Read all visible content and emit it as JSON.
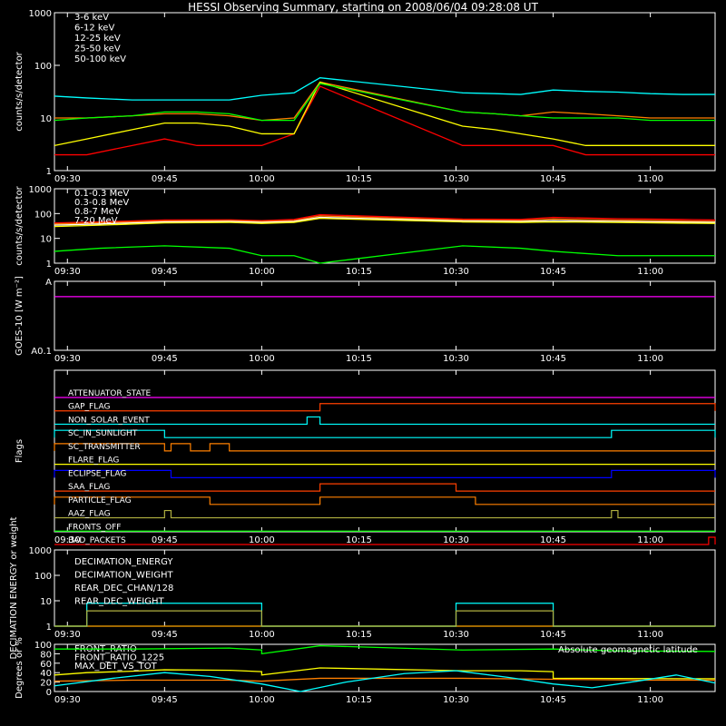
{
  "title": "HESSI Observing Summary, starting on 2008/06/04 09:28:08 UT",
  "colors": {
    "background": "#000000",
    "axes": "#ffffff",
    "red": "#ff0000",
    "orange": "#ff8000",
    "yellow": "#ffff00",
    "green": "#00ff00",
    "cyan": "#00ffff",
    "magenta": "#ff00ff",
    "blue": "#0000ff",
    "olive": "#b0b040"
  },
  "chart_data": [
    {
      "type": "line",
      "panel": "lo-energy-rates",
      "ylabel": "counts/s/detector",
      "yscale": "log",
      "ylim": [
        1,
        1000
      ],
      "yticks": [
        "1",
        "10",
        "100",
        "1000"
      ],
      "xlim": [
        "09:28",
        "11:10"
      ],
      "xticks": [
        "09:30",
        "09:45",
        "10:00",
        "10:15",
        "10:30",
        "10:45",
        "11:00"
      ],
      "legend_position": "top-left",
      "series": [
        {
          "name": "3-6 keV",
          "color": "#ff0000",
          "x": [
            "09:28",
            "09:33",
            "09:40",
            "09:45",
            "09:50",
            "09:55",
            "10:00",
            "10:05",
            "10:09",
            "10:31",
            "10:36",
            "10:40",
            "10:45",
            "10:50",
            "10:55",
            "11:00",
            "11:05",
            "11:10"
          ],
          "y": [
            2,
            2,
            3,
            4,
            3,
            3,
            3,
            5,
            40,
            3,
            3,
            3,
            3,
            2,
            2,
            2,
            2,
            2
          ]
        },
        {
          "name": "6-12 keV",
          "color": "#ff8000",
          "x": [
            "09:28",
            "09:33",
            "09:40",
            "09:45",
            "09:50",
            "09:55",
            "10:00",
            "10:05",
            "10:09",
            "10:31",
            "10:36",
            "10:40",
            "10:45",
            "10:50",
            "10:55",
            "11:00",
            "11:05",
            "11:10"
          ],
          "y": [
            10,
            10,
            11,
            12,
            12,
            11,
            9,
            10,
            48,
            13,
            12,
            11,
            13,
            12,
            11,
            10,
            10,
            10
          ]
        },
        {
          "name": "12-25 keV",
          "color": "#ffff00",
          "x": [
            "09:28",
            "09:33",
            "09:40",
            "09:45",
            "09:50",
            "09:55",
            "10:00",
            "10:05",
            "10:09",
            "10:31",
            "10:36",
            "10:40",
            "10:45",
            "10:50",
            "10:55",
            "11:00",
            "11:05",
            "11:10"
          ],
          "y": [
            3,
            4,
            6,
            8,
            8,
            7,
            5,
            5,
            48,
            7,
            6,
            5,
            4,
            3,
            3,
            3,
            3,
            3
          ]
        },
        {
          "name": "25-50 keV",
          "color": "#00ff00",
          "x": [
            "09:28",
            "09:33",
            "09:40",
            "09:45",
            "09:50",
            "09:55",
            "10:00",
            "10:05",
            "10:09",
            "10:31",
            "10:36",
            "10:40",
            "10:45",
            "10:50",
            "10:55",
            "11:00",
            "11:05",
            "11:10"
          ],
          "y": [
            9,
            10,
            11,
            13,
            13,
            12,
            9,
            9,
            45,
            13,
            12,
            11,
            10,
            10,
            10,
            9,
            9,
            9
          ]
        },
        {
          "name": "50-100 keV",
          "color": "#00ffff",
          "x": [
            "09:28",
            "09:33",
            "09:40",
            "09:45",
            "09:50",
            "09:55",
            "10:00",
            "10:05",
            "10:09",
            "10:31",
            "10:36",
            "10:40",
            "10:45",
            "10:50",
            "10:55",
            "11:00",
            "11:05",
            "11:10"
          ],
          "y": [
            26,
            24,
            22,
            22,
            22,
            22,
            27,
            30,
            58,
            30,
            29,
            28,
            34,
            32,
            31,
            29,
            28,
            28
          ]
        }
      ]
    },
    {
      "type": "line",
      "panel": "hi-energy-rates",
      "ylabel": "counts/s/detector",
      "yscale": "log",
      "ylim": [
        1,
        1000
      ],
      "yticks": [
        "1",
        "10",
        "100",
        "1000"
      ],
      "xlim": [
        "09:28",
        "11:10"
      ],
      "xticks": [
        "09:30",
        "09:45",
        "10:00",
        "10:15",
        "10:30",
        "10:45",
        "11:00"
      ],
      "legend_position": "top-left",
      "series": [
        {
          "name": "0.1-0.3 MeV",
          "color": "#ff0000",
          "x": [
            "09:28",
            "09:35",
            "09:45",
            "09:55",
            "10:00",
            "10:05",
            "10:09",
            "10:31",
            "10:40",
            "10:45",
            "10:55",
            "11:05",
            "11:10"
          ],
          "y": [
            42,
            46,
            55,
            56,
            52,
            58,
            90,
            60,
            58,
            70,
            62,
            58,
            55
          ]
        },
        {
          "name": "0.3-0.8 MeV",
          "color": "#ff8000",
          "x": [
            "09:28",
            "09:35",
            "09:45",
            "09:55",
            "10:00",
            "10:05",
            "10:09",
            "10:31",
            "10:40",
            "10:45",
            "10:55",
            "11:05",
            "11:10"
          ],
          "y": [
            38,
            42,
            50,
            52,
            48,
            52,
            80,
            54,
            52,
            60,
            54,
            50,
            48
          ]
        },
        {
          "name": "0.8-7 MeV",
          "color": "#ffffff",
          "x": [
            "09:28",
            "09:35",
            "09:45",
            "09:55",
            "10:00",
            "10:05",
            "10:09",
            "10:31",
            "10:40",
            "10:45",
            "10:55",
            "11:05",
            "11:10"
          ],
          "y": [
            34,
            38,
            46,
            48,
            44,
            48,
            70,
            50,
            48,
            52,
            48,
            45,
            44
          ]
        },
        {
          "name": "7-20 MeV",
          "color": "#ffff00",
          "x": [
            "09:28",
            "09:35",
            "09:45",
            "09:55",
            "10:00",
            "10:05",
            "10:09",
            "10:31",
            "10:40",
            "10:45",
            "10:55",
            "11:05",
            "11:10"
          ],
          "y": [
            30,
            34,
            42,
            44,
            40,
            44,
            64,
            46,
            44,
            46,
            44,
            41,
            40
          ]
        },
        {
          "name": "",
          "color": "#00ff00",
          "x": [
            "09:28",
            "09:35",
            "09:45",
            "09:55",
            "10:00",
            "10:05",
            "10:09",
            "10:31",
            "10:40",
            "10:45",
            "10:55",
            "11:05",
            "11:10"
          ],
          "y": [
            3,
            4,
            5,
            4,
            2,
            2,
            1,
            5,
            4,
            3,
            2,
            2,
            2
          ]
        }
      ]
    },
    {
      "type": "line",
      "panel": "goes",
      "ylabel": "GOES-10 [W m⁻²]",
      "yscale": "log",
      "ylim": [
        0.1,
        1
      ],
      "yticks": [
        "A0.1",
        "A"
      ],
      "xlim": [
        "09:28",
        "11:10"
      ],
      "xticks": [
        "09:30",
        "09:45",
        "10:00",
        "10:15",
        "10:30",
        "10:45",
        "11:00"
      ],
      "series": [
        {
          "name": "",
          "color": "#ff00ff",
          "x": [
            "09:28",
            "11:10"
          ],
          "y": [
            0.6,
            0.6
          ]
        }
      ]
    },
    {
      "type": "line",
      "panel": "flags",
      "ylabel": "Flags",
      "xlim": [
        "09:28",
        "11:10"
      ],
      "xticks": [
        "09:30",
        "09:45",
        "10:00",
        "10:15",
        "10:30",
        "10:45",
        "11:00"
      ],
      "series": [
        {
          "name": "ATTENUATOR_STATE",
          "color": "#ff00ff",
          "on": []
        },
        {
          "name": "GAP_FLAG",
          "color": "#ff4000",
          "on": [
            [
              "10:09",
              "11:10"
            ]
          ]
        },
        {
          "name": "NON_SOLAR_EVENT",
          "color": "#00ffff",
          "on": [
            [
              "10:07",
              "10:09"
            ]
          ]
        },
        {
          "name": "SC_IN_SUNLIGHT",
          "color": "#00ffff",
          "on": [
            [
              "09:28",
              "09:45"
            ],
            [
              "10:54",
              "11:10"
            ]
          ]
        },
        {
          "name": "SC_TRANSMITTER",
          "color": "#ff8000",
          "on": [
            [
              "09:28",
              "09:45"
            ],
            [
              "09:46",
              "09:49"
            ],
            [
              "09:52",
              "09:55"
            ]
          ]
        },
        {
          "name": "FLARE_FLAG",
          "color": "#ffff00",
          "on": []
        },
        {
          "name": "ECLIPSE_FLAG",
          "color": "#0000ff",
          "on": [
            [
              "09:28",
              "09:46"
            ],
            [
              "10:54",
              "11:10"
            ]
          ]
        },
        {
          "name": "SAA_FLAG",
          "color": "#ff4000",
          "on": [
            [
              "10:09",
              "10:30"
            ]
          ]
        },
        {
          "name": "PARTICLE_FLAG",
          "color": "#ff8000",
          "on": [
            [
              "09:28",
              "09:52"
            ],
            [
              "10:09",
              "10:33"
            ]
          ]
        },
        {
          "name": "AAZ_FLAG",
          "color": "#b0b040",
          "on": [
            [
              "09:45",
              "09:46"
            ],
            [
              "10:54",
              "10:55"
            ]
          ]
        },
        {
          "name": "FRONTS_OFF",
          "color": "#00ff00",
          "on": []
        },
        {
          "name": "BAD_PACKETS",
          "color": "#ff0000",
          "on": [
            [
              "11:09",
              "11:10"
            ]
          ]
        }
      ]
    },
    {
      "type": "line",
      "panel": "decimation",
      "ylabel": "DECIMATION ENERGY or weight",
      "yscale": "log",
      "ylim": [
        1,
        1000
      ],
      "yticks": [
        "1",
        "10",
        "100",
        "1000"
      ],
      "xlim": [
        "09:28",
        "11:10"
      ],
      "xticks": [
        "09:30",
        "09:45",
        "10:00",
        "10:15",
        "10:30",
        "10:45",
        "11:00"
      ],
      "legend_position": "top-left",
      "series": [
        {
          "name": "DECIMATION_ENERGY",
          "color": "#00ff00",
          "segments": [
            [
              [
                "09:28",
                1
              ],
              [
                "11:10",
                1
              ]
            ]
          ]
        },
        {
          "name": "DECIMATION_WEIGHT",
          "color": "#ff8000",
          "segments": [
            [
              [
                "09:28",
                1
              ],
              [
                "11:10",
                1
              ]
            ]
          ]
        },
        {
          "name": "REAR_DEC_CHAN/128",
          "color": "#00ffff",
          "segments": [
            [
              [
                "09:28",
                1
              ],
              [
                "09:33",
                1
              ],
              [
                "09:33",
                8
              ],
              [
                "10:00",
                8
              ],
              [
                "10:00",
                1
              ],
              [
                "10:30",
                1
              ],
              [
                "10:30",
                8
              ],
              [
                "10:45",
                8
              ],
              [
                "10:45",
                1
              ],
              [
                "11:10",
                1
              ]
            ]
          ]
        },
        {
          "name": "REAR_DEC_WEIGHT",
          "color": "#b0b040",
          "segments": [
            [
              [
                "09:28",
                1
              ],
              [
                "09:33",
                1
              ],
              [
                "09:33",
                4
              ],
              [
                "10:00",
                4
              ],
              [
                "10:00",
                1
              ],
              [
                "10:30",
                1
              ],
              [
                "10:30",
                4
              ],
              [
                "10:45",
                4
              ],
              [
                "10:45",
                1
              ],
              [
                "11:10",
                1
              ]
            ]
          ]
        }
      ]
    },
    {
      "type": "line",
      "panel": "ratios",
      "ylabel": "Degrees or %",
      "ylim": [
        0,
        100
      ],
      "yticks": [
        "0",
        "20",
        "40",
        "60",
        "80",
        "100"
      ],
      "xlim": [
        "09:28",
        "11:10"
      ],
      "xticks": [
        "09:30",
        "09:45",
        "10:00",
        "10:15",
        "10:30",
        "10:45",
        "11:00"
      ],
      "legend_position": "top-left",
      "series": [
        {
          "name": "FRONT_RATIO",
          "color": "#ffff00",
          "x": [
            "09:28",
            "09:33",
            "09:40",
            "09:45",
            "09:55",
            "10:00",
            "10:00",
            "10:09",
            "10:31",
            "10:40",
            "10:45",
            "10:45",
            "11:10"
          ],
          "y": [
            35,
            40,
            43,
            46,
            45,
            42,
            35,
            50,
            44,
            44,
            42,
            28,
            27
          ]
        },
        {
          "name": "FRONT_RATIO_1225",
          "color": "#00ff00",
          "x": [
            "09:28",
            "09:40",
            "09:55",
            "10:00",
            "10:00",
            "10:09",
            "10:31",
            "10:45",
            "10:55",
            "11:10"
          ],
          "y": [
            90,
            90,
            92,
            88,
            80,
            97,
            88,
            90,
            86,
            85
          ]
        },
        {
          "name": "MAX_DET_VS_TOT",
          "color": "#ff8000",
          "x": [
            "09:28",
            "09:40",
            "09:55",
            "10:00",
            "10:09",
            "10:31",
            "10:45",
            "11:00",
            "11:10"
          ],
          "y": [
            22,
            24,
            24,
            22,
            28,
            28,
            26,
            24,
            24
          ]
        },
        {
          "name": "Absolute geomagnetic latitude",
          "color": "#00ffff",
          "x": [
            "09:28",
            "09:37",
            "09:45",
            "09:52",
            "10:00",
            "10:06",
            "10:13",
            "10:22",
            "10:30",
            "10:38",
            "10:45",
            "10:51",
            "10:58",
            "11:04",
            "11:10"
          ],
          "y": [
            12,
            28,
            40,
            32,
            16,
            0,
            20,
            38,
            44,
            30,
            16,
            8,
            22,
            35,
            18
          ]
        }
      ]
    }
  ]
}
